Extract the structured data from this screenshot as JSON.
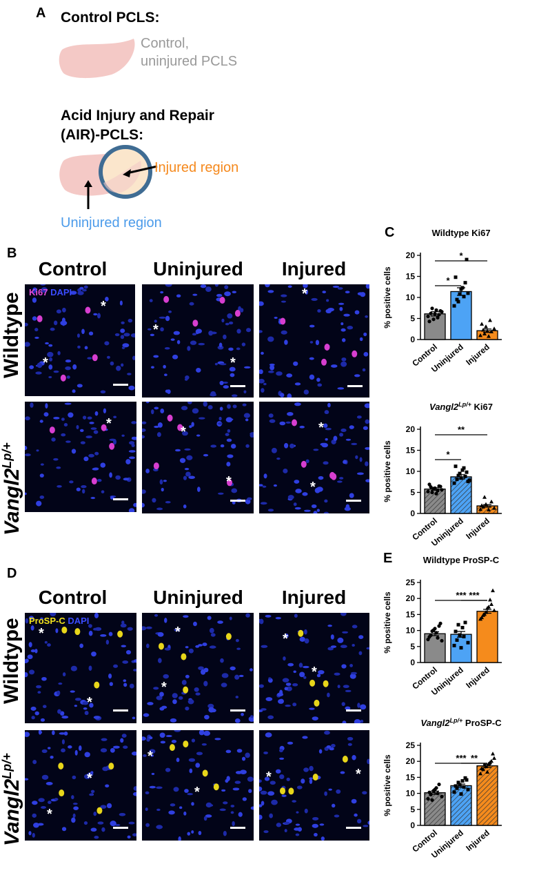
{
  "panels": {
    "A": {
      "letter": "A",
      "control_heading": "Control PCLS:",
      "control_label_line1": "Control,",
      "control_label_line2": "uninjured PCLS",
      "air_heading_line1": "Acid Injury and Repair",
      "air_heading_line2": "(AIR)-PCLS:",
      "injured_region": "Injured region",
      "uninjured_region": "Uninjured region",
      "colors": {
        "tissue": "#f4c9c6",
        "injured_fill": "#fbe6cc",
        "ring": "#3f6c93",
        "injured_text": "#f5891d",
        "uninjured_text": "#4b9bea",
        "muted_text": "#999999"
      }
    },
    "B": {
      "letter": "B",
      "col_control": "Control",
      "col_uninjured": "Uninjured",
      "col_injured": "Injured",
      "row_wildtype": "Wildtype",
      "row_vangl_prefix": "Vangl2",
      "row_vangl_sup": "Lp/+",
      "legend_marker": "Ki67",
      "legend_dapi": "DAPI",
      "marker_color": "#e14ad8",
      "dapi_color": "#3a4bff",
      "star": "*"
    },
    "C": {
      "letter": "C",
      "sig_star": "*"
    },
    "D": {
      "letter": "D",
      "col_control": "Control",
      "col_uninjured": "Uninjured",
      "col_injured": "Injured",
      "row_wildtype": "Wildtype",
      "row_vangl_prefix": "Vangl2",
      "row_vangl_sup": "Lp/+",
      "legend_marker": "ProSP-C",
      "legend_dapi": "DAPI",
      "marker_color": "#f2e21c",
      "dapi_color": "#3a4bff",
      "star": "*"
    },
    "E": {
      "letter": "E"
    }
  },
  "chart_data": [
    {
      "id": "C1",
      "type": "bar",
      "title": "Wildtype Ki67",
      "ylabel": "% positive cells",
      "categories": [
        "Control",
        "Uninjured",
        "Injured"
      ],
      "values": [
        6.1,
        11.4,
        2.1
      ],
      "errors": [
        0.5,
        0.9,
        0.4
      ],
      "ylim": [
        0,
        20
      ],
      "yticks": [
        0,
        5,
        10,
        15,
        20
      ],
      "colors": [
        "#8a8a8a",
        "#4da3f5",
        "#f58b1c"
      ],
      "hatched": false,
      "points": [
        [
          5.5,
          6.2,
          4.8,
          7.0,
          5.9,
          6.6,
          4.3,
          7.4,
          6.1,
          5.2,
          6.8
        ],
        [
          8.0,
          9.5,
          10.8,
          12.3,
          13.5,
          11.0,
          14.8,
          9.0,
          12.0,
          10.2,
          19.0
        ],
        [
          1.0,
          2.3,
          3.1,
          0.8,
          1.9,
          2.6,
          3.7,
          1.4,
          2.0,
          4.6
        ]
      ],
      "markers": [
        "circle",
        "square",
        "triangle"
      ],
      "significance": [
        {
          "from": 0,
          "to": 1,
          "label": "*"
        },
        {
          "from": 0,
          "to": 2,
          "label": "*"
        }
      ]
    },
    {
      "id": "C2",
      "type": "bar",
      "title_prefix": "Vangl2",
      "title_sup": "Lp/+",
      "title_suffix": " Ki67",
      "ylabel": "% positive cells",
      "categories": [
        "Control",
        "Uninjured",
        "Injured"
      ],
      "values": [
        5.8,
        8.7,
        1.8
      ],
      "errors": [
        0.3,
        0.5,
        0.3
      ],
      "ylim": [
        0,
        20
      ],
      "yticks": [
        0,
        5,
        10,
        15,
        20
      ],
      "colors": [
        "#8a8a8a",
        "#4da3f5",
        "#f58b1c"
      ],
      "hatched": true,
      "points": [
        [
          5.2,
          6.3,
          5.9,
          4.7,
          6.5,
          5.6,
          6.9,
          5.0,
          6.0,
          5.4,
          6.4
        ],
        [
          7.2,
          8.1,
          9.5,
          10.3,
          8.8,
          7.6,
          11.2,
          9.0,
          8.4,
          10.8,
          9.8,
          7.9
        ],
        [
          1.0,
          1.6,
          2.2,
          0.9,
          2.8,
          1.3,
          1.9,
          3.9
        ]
      ],
      "markers": [
        "circle",
        "square",
        "triangle"
      ],
      "significance": [
        {
          "from": 0,
          "to": 1,
          "label": "*"
        },
        {
          "from": 0,
          "to": 2,
          "label": "**"
        }
      ]
    },
    {
      "id": "E1",
      "type": "bar",
      "title": "Wildtype ProSP-C",
      "ylabel": "% positive cells",
      "categories": [
        "Control",
        "Uninjured",
        "Injured"
      ],
      "values": [
        9.0,
        8.8,
        16.0
      ],
      "errors": [
        0.6,
        0.9,
        0.6
      ],
      "ylim": [
        0,
        25
      ],
      "yticks": [
        0,
        5,
        10,
        15,
        20,
        25
      ],
      "colors": [
        "#8a8a8a",
        "#4da3f5",
        "#f58b1c"
      ],
      "hatched": false,
      "points": [
        [
          7.2,
          8.5,
          10.1,
          9.3,
          11.4,
          6.8,
          8.0,
          9.8,
          10.6,
          7.7,
          12.2
        ],
        [
          5.3,
          7.0,
          8.6,
          10.9,
          12.5,
          6.2,
          9.7,
          11.8,
          4.6,
          8.1
        ],
        [
          13.6,
          14.8,
          15.7,
          17.4,
          18.2,
          16.3,
          14.1,
          15.1,
          17.0,
          19.6,
          22.5
        ]
      ],
      "markers": [
        "circle",
        "square",
        "triangle"
      ],
      "significance": [
        {
          "from": 0,
          "to": 2,
          "label": "***"
        },
        {
          "from": 1,
          "to": 2,
          "label": "***"
        }
      ]
    },
    {
      "id": "E2",
      "type": "bar",
      "title_prefix": "Vangl2",
      "title_sup": "Lp/+",
      "title_suffix": " ProSP-C",
      "ylabel": "% positive cells",
      "categories": [
        "Control",
        "Uninjured",
        "Injured"
      ],
      "values": [
        10.2,
        12.4,
        18.6
      ],
      "errors": [
        0.5,
        0.5,
        0.5
      ],
      "ylim": [
        0,
        25
      ],
      "yticks": [
        0,
        5,
        10,
        15,
        20,
        25
      ],
      "colors": [
        "#8a8a8a",
        "#4da3f5",
        "#f58b1c"
      ],
      "hatched": true,
      "points": [
        [
          8.3,
          9.6,
          10.8,
          11.7,
          12.8,
          9.0,
          10.3,
          7.9,
          11.2,
          10.0
        ],
        [
          10.4,
          11.6,
          12.7,
          13.9,
          14.8,
          11.2,
          12.3,
          13.4,
          9.8,
          12.0,
          14.2
        ],
        [
          16.2,
          17.5,
          18.4,
          19.3,
          20.1,
          21.0,
          17.8,
          18.9,
          16.7,
          19.7,
          22.4
        ]
      ],
      "markers": [
        "circle",
        "square",
        "triangle"
      ],
      "significance": [
        {
          "from": 0,
          "to": 2,
          "label": "***"
        },
        {
          "from": 1,
          "to": 2,
          "label": "**"
        }
      ]
    }
  ]
}
